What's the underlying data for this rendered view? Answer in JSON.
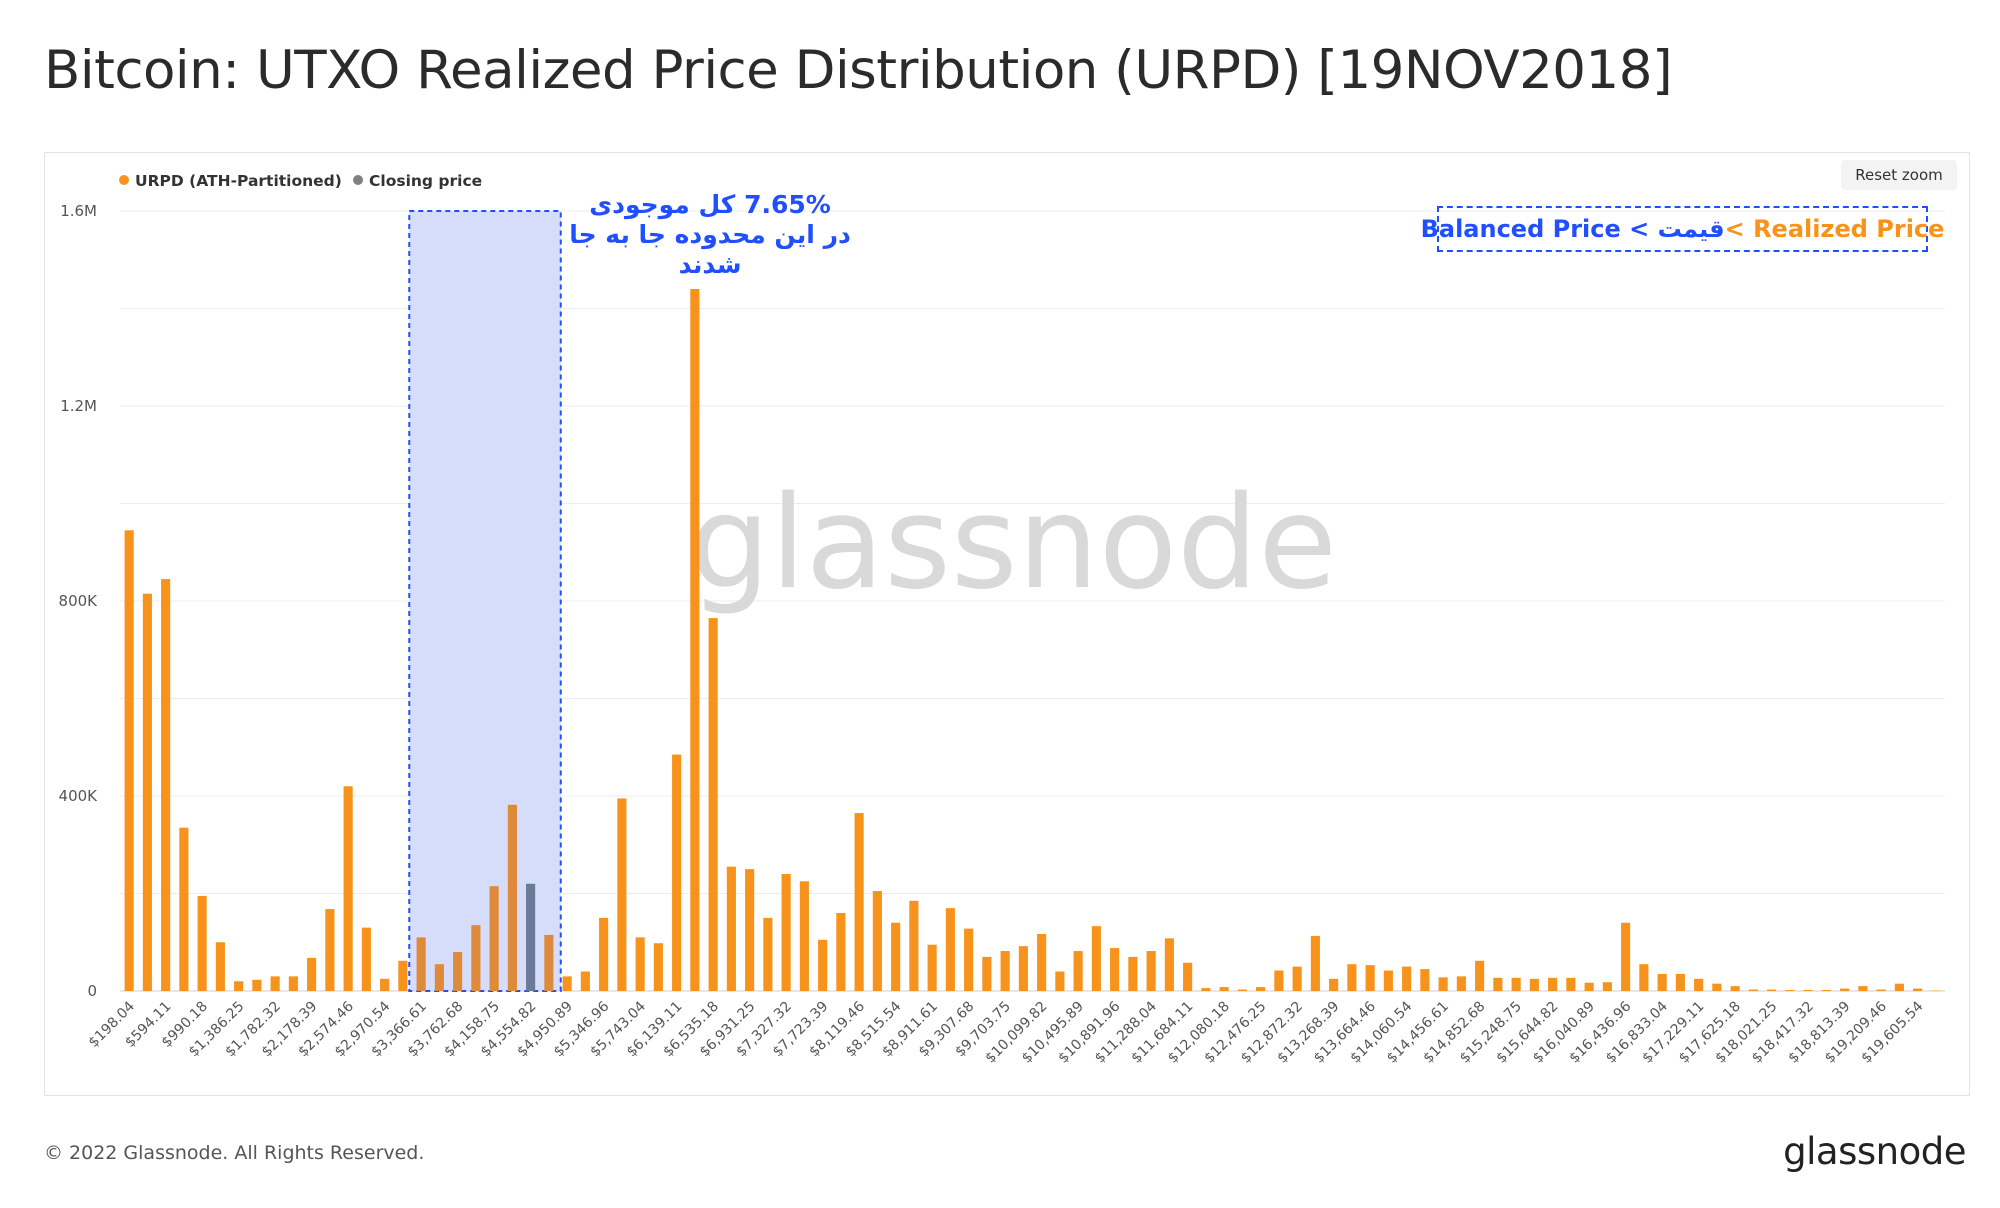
{
  "title": "Bitcoin: UTXO Realized Price Distribution (URPD) [19NOV2018]",
  "reset_zoom_label": "Reset zoom",
  "watermark": "glassnode",
  "footer": {
    "copyright": "© 2022 Glassnode. All Rights Reserved.",
    "logo": "glassnode"
  },
  "annotations": {
    "range_note_lines": [
      "7.65%  کل موجودی",
      "در این محدوده جا به جا",
      "شدند"
    ],
    "legend_note_part1": "Balanced Price < قیمت",
    "legend_note_part2": " < Realized Price"
  },
  "colors": {
    "urpd": "#f7931a",
    "closing": "#6b7a99",
    "highlight": "#d6ddfa",
    "annotation_blue": "#1f4fff"
  },
  "chart_data": {
    "type": "bar",
    "legend": [
      {
        "name": "URPD (ATH-Partitioned)",
        "color": "#f7931a"
      },
      {
        "name": "Closing price",
        "color": "#808080"
      }
    ],
    "legend_position": "top-left",
    "grid": true,
    "ylim": [
      0,
      1600000
    ],
    "y_ticks": [
      "0",
      "400K",
      "800K",
      "1.2M",
      "1.6M"
    ],
    "y_tick_values": [
      0,
      400000,
      800000,
      1200000,
      1600000
    ],
    "x_tick_labels": [
      "$198.04",
      "$594.11",
      "$990.18",
      "$1,386.25",
      "$1,782.32",
      "$2,178.39",
      "$2,574.46",
      "$2,970.54",
      "$3,366.61",
      "$3,762.68",
      "$4,158.75",
      "$4,554.82",
      "$4,950.89",
      "$5,346.96",
      "$5,743.04",
      "$6,139.11",
      "$6,535.18",
      "$6,931.25",
      "$7,327.32",
      "$7,723.39",
      "$8,119.46",
      "$8,515.54",
      "$8,911.61",
      "$9,307.68",
      "$9,703.75",
      "$10,099.82",
      "$10,495.89",
      "$10,891.96",
      "$11,288.04",
      "$11,684.11",
      "$12,080.18",
      "$12,476.25",
      "$12,872.32",
      "$13,268.39",
      "$13,664.46",
      "$14,060.54",
      "$14,456.61",
      "$14,852.68",
      "$15,248.75",
      "$15,644.82",
      "$16,040.89",
      "$16,436.96",
      "$16,833.04",
      "$17,229.11",
      "$17,625.18",
      "$18,021.25",
      "$18,417.32",
      "$18,813.39",
      "$19,209.46",
      "$19,605.54"
    ],
    "bucket_width": 198.035,
    "first_bucket_price": 198.04,
    "closing_price_index": 22,
    "highlight_range_indices": [
      16,
      23
    ],
    "values": [
      945000,
      815000,
      845000,
      335000,
      195000,
      100000,
      20000,
      23000,
      30000,
      30000,
      68000,
      168000,
      420000,
      130000,
      25000,
      62000,
      110000,
      55000,
      80000,
      135000,
      215000,
      382000,
      220000,
      115000,
      30000,
      40000,
      150000,
      395000,
      110000,
      98000,
      485000,
      1440000,
      765000,
      255000,
      250000,
      150000,
      240000,
      225000,
      105000,
      160000,
      365000,
      205000,
      140000,
      185000,
      95000,
      170000,
      128000,
      70000,
      82000,
      92000,
      117000,
      40000,
      82000,
      133000,
      88000,
      70000,
      82000,
      108000,
      58000,
      6000,
      8000,
      3000,
      8000,
      42000,
      50000,
      113000,
      25000,
      55000,
      53000,
      42000,
      50000,
      45000,
      28000,
      30000,
      62000,
      27000,
      27000,
      25000,
      27000,
      27000,
      17000,
      18000,
      140000,
      55000,
      35000,
      35000,
      25000,
      15000,
      10000,
      3000,
      3000,
      2000,
      2000,
      2000,
      5000,
      10000,
      3000,
      15000,
      5000,
      1000
    ]
  }
}
